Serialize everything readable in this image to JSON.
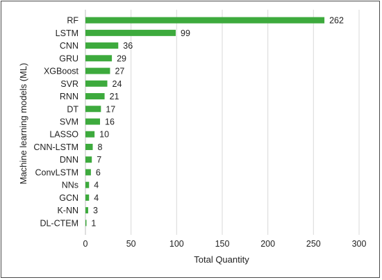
{
  "chart_data": {
    "type": "bar",
    "orientation": "horizontal",
    "title": "",
    "xlabel": "Total Quantity",
    "ylabel": "Machine learning models (ML)",
    "categories": [
      "RF",
      "LSTM",
      "CNN",
      "GRU",
      "XGBoost",
      "SVR",
      "RNN",
      "DT",
      "SVM",
      "LASSO",
      "CNN-LSTM",
      "DNN",
      "ConvLSTM",
      "NNs",
      "GCN",
      "K-NN",
      "DL-CTEM"
    ],
    "values": [
      262,
      99,
      36,
      29,
      27,
      24,
      21,
      17,
      16,
      10,
      8,
      7,
      6,
      4,
      4,
      3,
      1
    ],
    "xlim": [
      0,
      300
    ],
    "xticks": [
      0,
      50,
      100,
      150,
      200,
      250,
      300
    ],
    "grid": "vertical",
    "legend": "none",
    "colors": {
      "bar": "#3daa3d",
      "grid": "#d9d9d9"
    }
  }
}
